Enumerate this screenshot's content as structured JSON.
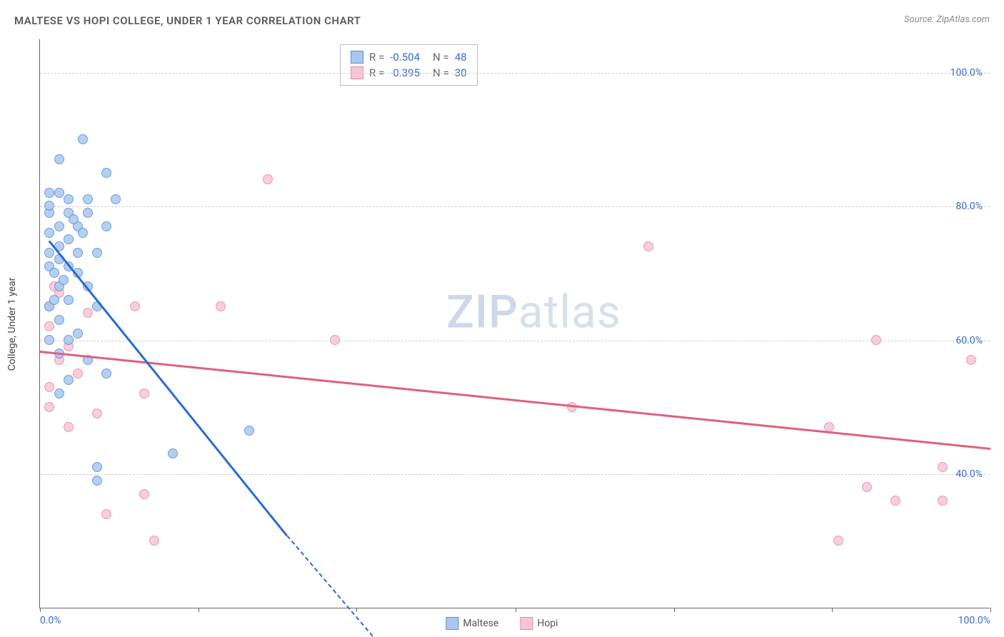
{
  "title": "MALTESE VS HOPI COLLEGE, UNDER 1 YEAR CORRELATION CHART",
  "source": "Source: ZipAtlas.com",
  "ylabel": "College, Under 1 year",
  "watermark": {
    "zip": "ZIP",
    "atlas": "atlas"
  },
  "colors": {
    "maltese_fill": "#a8c8ef",
    "maltese_stroke": "#5b8bd4",
    "maltese_line": "#2b6bd1",
    "hopi_fill": "#f7c6d4",
    "hopi_stroke": "#e08ca6",
    "hopi_line": "#e0607f",
    "grid": "#d0d0d0",
    "axis": "#666666",
    "tick_label": "#3b6bc9",
    "bg": "#ffffff"
  },
  "xlim": [
    0,
    100
  ],
  "ylim": [
    20,
    105
  ],
  "yticks": [
    40,
    60,
    80,
    100
  ],
  "ytick_labels": [
    "40.0%",
    "60.0%",
    "80.0%",
    "100.0%"
  ],
  "xticks": [
    0,
    16.7,
    33.3,
    50,
    66.7,
    83.3,
    100
  ],
  "xtick_labels": {
    "0": "0.0%",
    "100": "100.0%"
  },
  "stats": [
    {
      "series": "maltese",
      "r": "-0.504",
      "n": "48"
    },
    {
      "series": "hopi",
      "r": "-0.395",
      "n": "30"
    }
  ],
  "legend": [
    {
      "label": "Maltese",
      "series": "maltese"
    },
    {
      "label": "Hopi",
      "series": "hopi"
    }
  ],
  "series": {
    "maltese": {
      "points": [
        [
          4.5,
          90
        ],
        [
          2,
          87
        ],
        [
          7,
          85
        ],
        [
          1,
          82
        ],
        [
          3,
          81
        ],
        [
          5,
          81
        ],
        [
          8,
          81
        ],
        [
          1,
          79
        ],
        [
          3,
          79
        ],
        [
          5,
          79
        ],
        [
          2,
          77
        ],
        [
          4,
          77
        ],
        [
          7,
          77
        ],
        [
          1,
          76
        ],
        [
          3,
          75
        ],
        [
          2,
          74
        ],
        [
          1,
          73
        ],
        [
          4,
          73
        ],
        [
          6,
          73
        ],
        [
          2,
          72
        ],
        [
          1,
          71
        ],
        [
          3,
          71
        ],
        [
          1.5,
          70
        ],
        [
          4,
          70
        ],
        [
          2,
          68
        ],
        [
          5,
          68
        ],
        [
          3,
          66
        ],
        [
          1,
          65
        ],
        [
          6,
          65
        ],
        [
          2,
          63
        ],
        [
          4,
          61
        ],
        [
          1,
          60
        ],
        [
          3,
          60
        ],
        [
          2,
          58
        ],
        [
          5,
          57
        ],
        [
          7,
          55
        ],
        [
          3,
          54
        ],
        [
          2,
          52
        ],
        [
          22,
          46.5
        ],
        [
          6,
          41
        ],
        [
          14,
          43
        ],
        [
          6,
          39
        ],
        [
          1.5,
          66
        ],
        [
          2.5,
          69
        ],
        [
          3.5,
          78
        ],
        [
          4.5,
          76
        ],
        [
          1,
          80
        ],
        [
          2,
          82
        ]
      ],
      "trend": {
        "x1": 1,
        "y1": 75,
        "x2": 26,
        "y2": 31,
        "dash_x2": 35,
        "dash_y2": 16
      }
    },
    "hopi": {
      "points": [
        [
          24,
          84
        ],
        [
          64,
          74
        ],
        [
          2,
          67
        ],
        [
          1,
          65
        ],
        [
          5,
          64
        ],
        [
          10,
          65
        ],
        [
          19,
          65
        ],
        [
          1,
          62
        ],
        [
          31,
          60
        ],
        [
          2,
          57
        ],
        [
          4,
          55
        ],
        [
          1,
          53
        ],
        [
          11,
          52
        ],
        [
          56,
          50
        ],
        [
          1,
          50
        ],
        [
          6,
          49
        ],
        [
          3,
          47
        ],
        [
          88,
          60
        ],
        [
          98,
          57
        ],
        [
          83,
          47
        ],
        [
          95,
          41
        ],
        [
          87,
          38
        ],
        [
          90,
          36
        ],
        [
          95,
          36
        ],
        [
          84,
          30
        ],
        [
          11,
          37
        ],
        [
          7,
          34
        ],
        [
          12,
          30
        ],
        [
          1.5,
          68
        ],
        [
          3,
          59
        ]
      ],
      "trend": {
        "x1": 0,
        "y1": 58.5,
        "x2": 100,
        "y2": 44
      }
    }
  }
}
